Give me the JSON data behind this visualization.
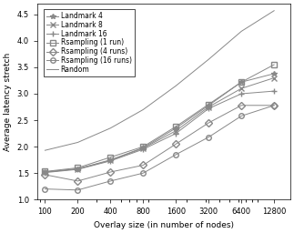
{
  "x": [
    100,
    200,
    400,
    800,
    1600,
    3200,
    6400,
    12800
  ],
  "landmark4": [
    1.52,
    1.58,
    1.75,
    1.98,
    2.35,
    2.78,
    3.22,
    3.38
  ],
  "landmark8": [
    1.52,
    1.58,
    1.74,
    1.97,
    2.3,
    2.75,
    3.1,
    3.3
  ],
  "landmark16": [
    1.51,
    1.57,
    1.73,
    1.95,
    2.25,
    2.72,
    3.0,
    3.05
  ],
  "rsampling1": [
    1.53,
    1.6,
    1.8,
    2.0,
    2.38,
    2.8,
    3.22,
    3.55
  ],
  "rsampling4": [
    1.47,
    1.35,
    1.52,
    1.65,
    2.05,
    2.45,
    2.78,
    2.78
  ],
  "rsampling16": [
    1.2,
    1.18,
    1.35,
    1.5,
    1.85,
    2.18,
    2.58,
    2.78
  ],
  "random": [
    1.93,
    2.08,
    2.35,
    2.7,
    3.15,
    3.65,
    4.18,
    4.57
  ],
  "xlabel": "Overlay size (in number of nodes)",
  "ylabel": "Average latency stretch",
  "legend_labels": [
    "Landmark 4",
    "Landmark 8",
    "Landmark 16",
    "Rsampling (1 run)",
    "Rsampling (4 runs)",
    "Rsampling (16 runs)",
    "Random"
  ],
  "ylim": [
    1.0,
    4.7
  ],
  "color": "#888888",
  "bg_color": "#ffffff"
}
